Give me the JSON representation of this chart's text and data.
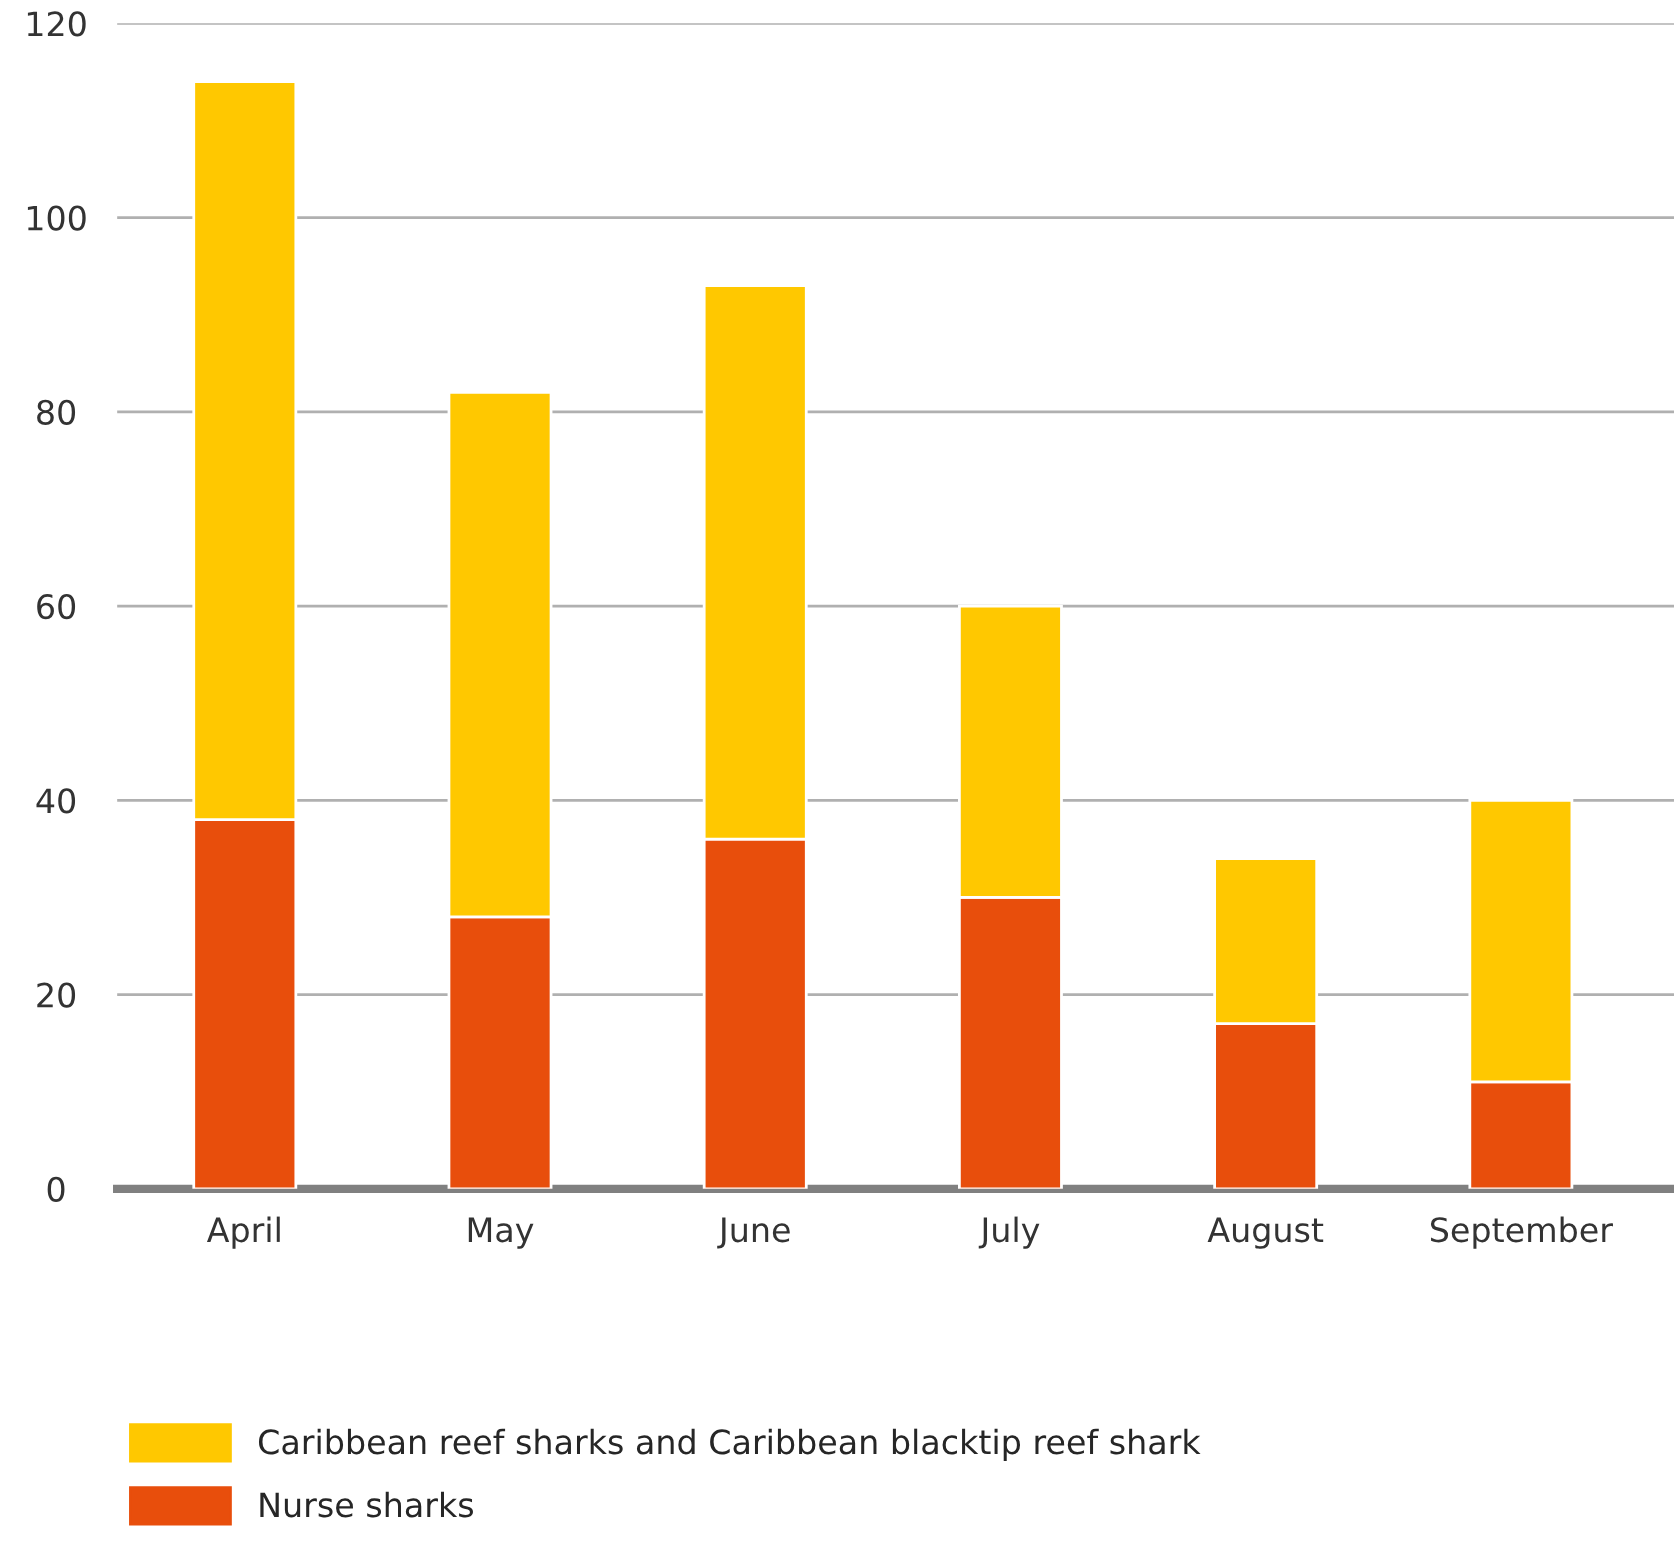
{
  "chart_data": {
    "type": "bar",
    "stacked": true,
    "categories": [
      "April",
      "May",
      "June",
      "July",
      "August",
      "September"
    ],
    "series": [
      {
        "name": "Nurse sharks",
        "color": "#e84e0c",
        "values": [
          38,
          28,
          36,
          30,
          17,
          11
        ]
      },
      {
        "name": "Caribbean reef sharks and Caribbean blacktip reef shark",
        "color": "#ffc800",
        "values": [
          76,
          54,
          57,
          30,
          17,
          29
        ]
      }
    ],
    "ylim": [
      0,
      120
    ],
    "yticks": [
      0,
      20,
      40,
      60,
      80,
      100,
      120
    ],
    "grid": "y",
    "legend": "bottom"
  }
}
